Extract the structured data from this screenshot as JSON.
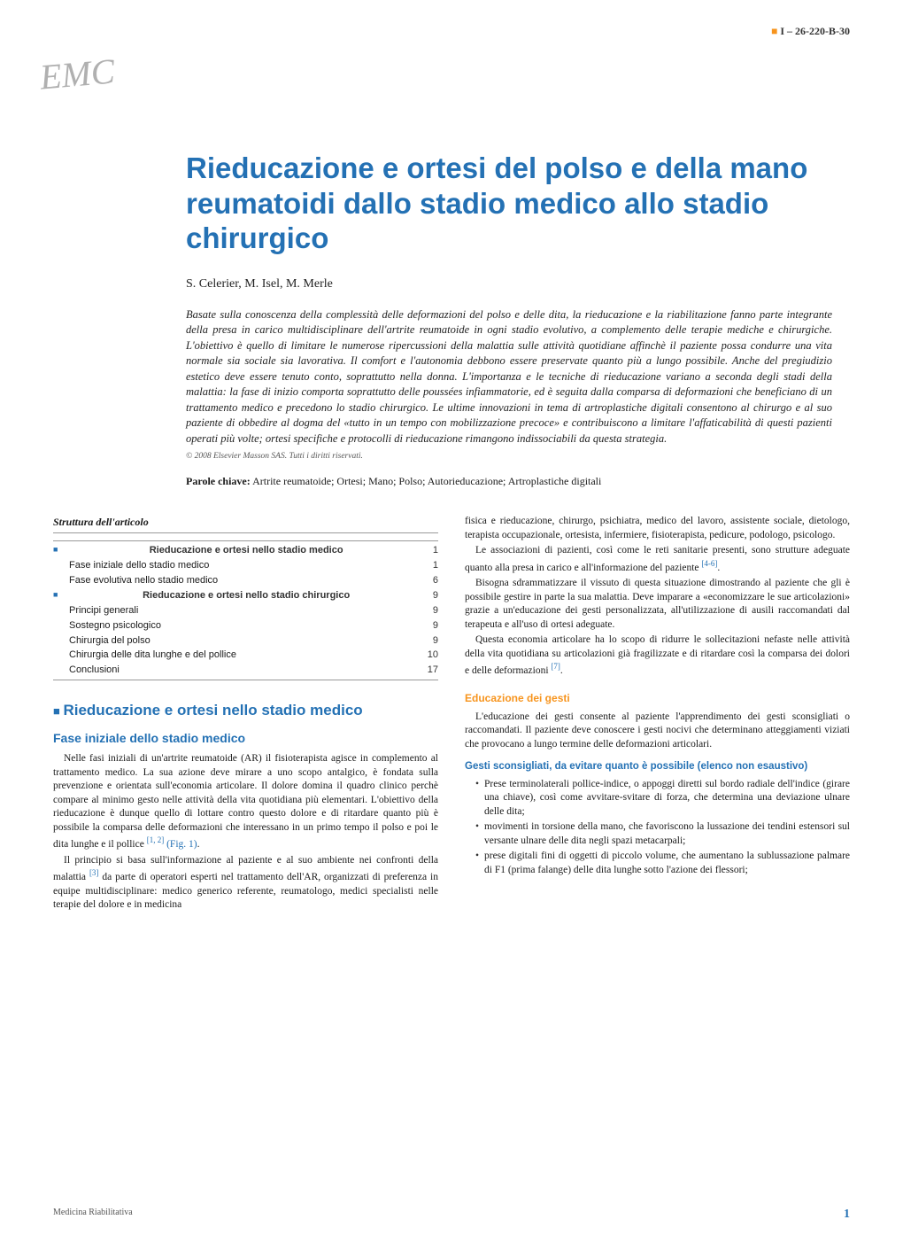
{
  "header": {
    "code": "I – 26-220-B-30",
    "logo": "EMC"
  },
  "article": {
    "title": "Rieducazione e ortesi del polso e della mano reumatoidi dallo stadio medico allo stadio chirurgico",
    "authors": "S. Celerier, M. Isel, M. Merle",
    "abstract": "Basate sulla conoscenza della complessità delle deformazioni del polso e delle dita, la rieducazione e la riabilitazione fanno parte integrante della presa in carico multidisciplinare dell'artrite reumatoide in ogni stadio evolutivo, a complemento delle terapie mediche e chirurgiche. L'obiettivo è quello di limitare le numerose ripercussioni della malattia sulle attività quotidiane affinchè il paziente possa condurre una vita normale sia sociale sia lavorativa. Il comfort e l'autonomia debbono essere preservate quanto più a lungo possibile. Anche del pregiudizio estetico deve essere tenuto conto, soprattutto nella donna. L'importanza e le tecniche di rieducazione variano a seconda degli stadi della malattia: la fase di inizio comporta soprattutto delle poussées infiammatorie, ed è seguita dalla comparsa di deformazioni che beneficiano di un trattamento medico e precedono lo stadio chirurgico. Le ultime innovazioni in tema di artroplastiche digitali consentono al chirurgo e al suo paziente di obbedire al dogma del «tutto in un tempo con mobilizzazione precoce» e contribuiscono a limitare l'affaticabilità di questi pazienti operati più volte; ortesi specifiche e protocolli di rieducazione rimangono indissociabili da questa strategia.",
    "copyright": "© 2008 Elsevier Masson SAS. Tutti i diritti riservati.",
    "keywords_label": "Parole chiave:",
    "keywords": "Artrite reumatoide; Ortesi; Mano; Polso; Autorieducazione; Artroplastiche digitali"
  },
  "structure": {
    "title": "Struttura dell'articolo",
    "items": [
      {
        "label": "Rieducazione e ortesi nello stadio medico",
        "page": "1",
        "level": "main"
      },
      {
        "label": "Fase iniziale dello stadio medico",
        "page": "1",
        "level": "sub"
      },
      {
        "label": "Fase evolutiva nello stadio medico",
        "page": "6",
        "level": "sub"
      },
      {
        "label": "Rieducazione e ortesi nello stadio chirurgico",
        "page": "9",
        "level": "main"
      },
      {
        "label": "Principi generali",
        "page": "9",
        "level": "sub"
      },
      {
        "label": "Sostegno psicologico",
        "page": "9",
        "level": "sub"
      },
      {
        "label": "Chirurgia del polso",
        "page": "9",
        "level": "sub"
      },
      {
        "label": "Chirurgia delle dita lunghe e del pollice",
        "page": "10",
        "level": "sub"
      },
      {
        "label": "Conclusioni",
        "page": "17",
        "level": "sub"
      }
    ]
  },
  "sections": {
    "h1_1": "Rieducazione e ortesi nello stadio medico",
    "h2_1": "Fase iniziale dello stadio medico",
    "h3_1": "Educazione dei gesti",
    "h4_1": "Gesti sconsigliati, da evitare quanto è possibile (elenco non esaustivo)"
  },
  "body": {
    "col1_p1": "Nelle fasi iniziali di un'artrite reumatoide (AR) il fisioterapista agisce in complemento al trattamento medico. La sua azione deve mirare a uno scopo antalgico, è fondata sulla prevenzione e orientata sull'economia articolare. Il dolore domina il quadro clinico perchè compare al minimo gesto nelle attività della vita quotidiana più elementari. L'obiettivo della rieducazione è dunque quello di lottare contro questo dolore e di ritardare quanto più è possibile la comparsa delle deformazioni che interessano in un primo tempo il polso e poi le dita lunghe e il pollice ",
    "col1_ref1": "[1, 2]",
    "col1_fig1": "(Fig. 1)",
    "col1_p2": "Il principio si basa sull'informazione al paziente e al suo ambiente nei confronti della malattia ",
    "col1_ref2": "[3]",
    "col1_p2b": " da parte di operatori esperti nel trattamento dell'AR, organizzati di preferenza in equipe multidisciplinare: medico generico referente, reumatologo, medici specialisti nelle terapie del dolore e in medicina",
    "col2_p1": "fisica e rieducazione, chirurgo, psichiatra, medico del lavoro, assistente sociale, dietologo, terapista occupazionale, ortesista, infermiere, fisioterapista, pedicure, podologo, psicologo.",
    "col2_p2": "Le associazioni di pazienti, così come le reti sanitarie presenti, sono strutture adeguate quanto alla presa in carico e all'informazione del paziente ",
    "col2_ref1": "[4-6]",
    "col2_p3": "Bisogna sdrammatizzare il vissuto di questa situazione dimostrando al paziente che gli è possibile gestire in parte la sua malattia. Deve imparare a «economizzare le sue articolazioni» grazie a un'educazione dei gesti personalizzata, all'utilizzazione di ausili raccomandati dal terapeuta e all'uso di ortesi adeguate.",
    "col2_p4": "Questa economia articolare ha lo scopo di ridurre le sollecitazioni nefaste nelle attività della vita quotidiana su articolazioni già fragilizzate e di ritardare così la comparsa dei dolori e delle deformazioni ",
    "col2_ref2": "[7]",
    "col2_p5": "L'educazione dei gesti consente al paziente l'apprendimento dei gesti sconsigliati o raccomandati. Il paziente deve conoscere i gesti nocivi che determinano atteggiamenti viziati che provocano a lungo termine delle deformazioni articolari.",
    "bullets": [
      "Prese terminolaterali pollice-indice, o appoggi diretti sul bordo radiale dell'indice (girare una chiave), così come avvitare-svitare di forza, che determina una deviazione ulnare delle dita;",
      "movimenti in torsione della mano, che favoriscono la lussazione dei tendini estensori sul versante ulnare delle dita negli spazi metacarpali;",
      "prese digitali fini di oggetti di piccolo volume, che aumentano la sublussazione palmare di F1 (prima falange) delle dita lunghe sotto l'azione dei flessori;"
    ]
  },
  "footer": {
    "journal": "Medicina Riabilitativa",
    "page": "1"
  },
  "colors": {
    "primary_blue": "#2471b4",
    "accent_orange": "#f7941d",
    "text": "#1a1a1a",
    "muted": "#555555",
    "rule": "#999999"
  }
}
